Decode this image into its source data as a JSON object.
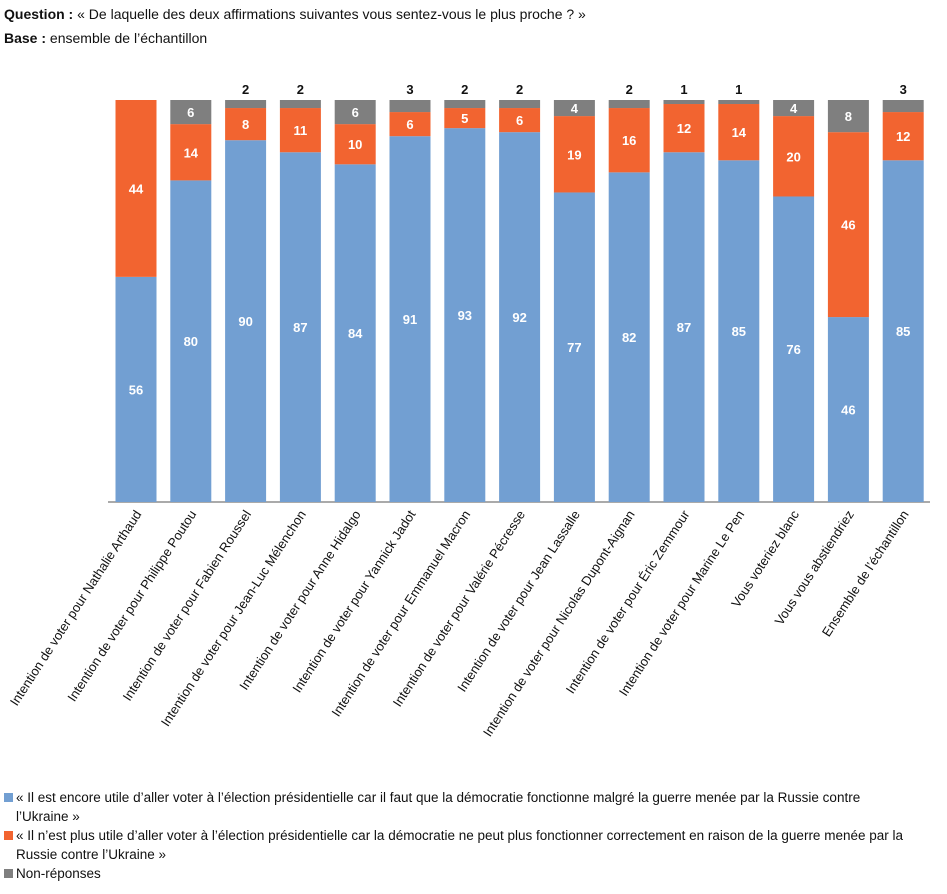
{
  "header": {
    "question_label": "Question :",
    "question_text": "« De laquelle des deux affirmations suivantes vous sentez-vous le plus proche ? »",
    "base_label": "Base :",
    "base_text": "ensemble de l’échantillon"
  },
  "chart_data": {
    "type": "stacked-bar",
    "categories": [
      "Intention de voter pour Nathalie Arthaud",
      "Intention de voter pour Philippe Poutou",
      "Intention de voter pour Fabien Roussel",
      "Intention de voter pour Jean-Luc Mélenchon",
      "Intention de voter pour Anne Hidalgo",
      "Intention de voter pour Yannick Jadot",
      "Intention de voter pour Emmanuel Macron",
      "Intention de voter pour Valérie Pécresse",
      "Intention de voter pour Jean Lassalle",
      "Intention de voter pour Nicolas Dupont-Aignan",
      "Intention de voter pour Éric Zemmour",
      "Intention de voter pour Marine Le Pen",
      "Vous voteriez blanc",
      "Vous vous abstiendriez",
      "Ensemble de l’échantillon"
    ],
    "series": [
      {
        "name": "« Il est encore utile d’aller voter à l’élection présidentielle car il faut que la démocratie fonctionne malgré la guerre menée par la Russie contre l’Ukraine »",
        "color": "#729fd2",
        "values": [
          56,
          80,
          90,
          87,
          84,
          91,
          93,
          92,
          77,
          82,
          87,
          85,
          76,
          46,
          85
        ]
      },
      {
        "name": "« Il n’est plus utile d’aller voter à l’élection présidentielle car la démocratie ne peut plus fonctionner correctement en raison de la guerre menée par la Russie contre l’Ukraine »",
        "color": "#f26430",
        "values": [
          44,
          14,
          8,
          11,
          10,
          6,
          5,
          6,
          19,
          16,
          12,
          14,
          20,
          46,
          12
        ]
      },
      {
        "name": "Non-réponses",
        "color": "#7f7f7f",
        "values": [
          null,
          6,
          2,
          2,
          6,
          3,
          2,
          2,
          4,
          2,
          1,
          1,
          4,
          8,
          3
        ]
      }
    ]
  }
}
